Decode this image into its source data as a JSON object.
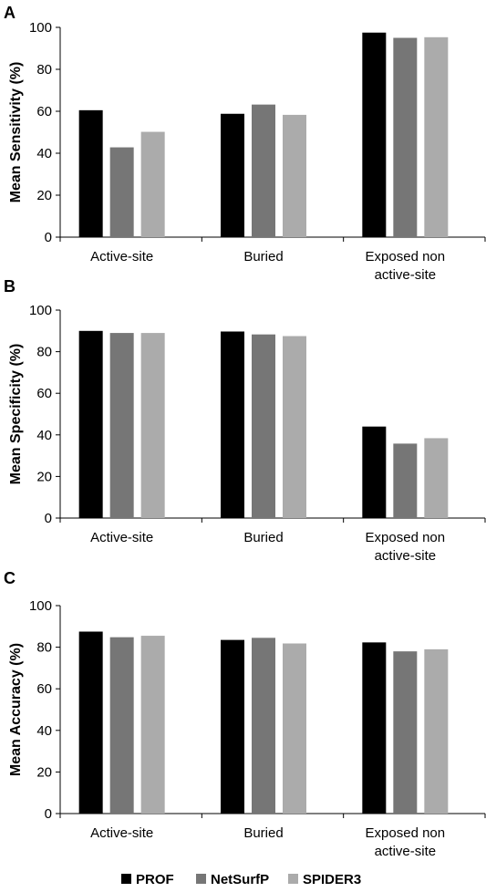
{
  "chart_data": [
    {
      "type": "bar",
      "panel": "A",
      "ylabel": "Mean Sensitivity (%)",
      "categories": [
        [
          "Active-site"
        ],
        [
          "Buried"
        ],
        [
          "Exposed non",
          "active-site"
        ]
      ],
      "ylim": [
        0,
        100
      ],
      "yticks": [
        0,
        20,
        40,
        60,
        80,
        100
      ],
      "series": [
        {
          "name": "PROF",
          "values": [
            60.5,
            58.8,
            97.5
          ]
        },
        {
          "name": "NetSurfP",
          "values": [
            42.8,
            63.2,
            95.0
          ]
        },
        {
          "name": "SPIDER3",
          "values": [
            50.2,
            58.3,
            95.3
          ]
        }
      ]
    },
    {
      "type": "bar",
      "panel": "B",
      "ylabel": "Mean Specificity (%)",
      "categories": [
        [
          "Active-site"
        ],
        [
          "Buried"
        ],
        [
          "Exposed non",
          "active-site"
        ]
      ],
      "ylim": [
        0,
        100
      ],
      "yticks": [
        0,
        20,
        40,
        60,
        80,
        100
      ],
      "series": [
        {
          "name": "PROF",
          "values": [
            90.0,
            89.7,
            44.0
          ]
        },
        {
          "name": "NetSurfP",
          "values": [
            89.0,
            88.3,
            35.8
          ]
        },
        {
          "name": "SPIDER3",
          "values": [
            89.0,
            87.5,
            38.4
          ]
        }
      ]
    },
    {
      "type": "bar",
      "panel": "C",
      "ylabel": "Mean Accuracy (%)",
      "categories": [
        [
          "Active-site"
        ],
        [
          "Buried"
        ],
        [
          "Exposed non",
          "active-site"
        ]
      ],
      "ylim": [
        0,
        100
      ],
      "yticks": [
        0,
        20,
        40,
        60,
        80,
        100
      ],
      "series": [
        {
          "name": "PROF",
          "values": [
            87.5,
            83.5,
            82.3
          ]
        },
        {
          "name": "NetSurfP",
          "values": [
            84.8,
            84.5,
            78.0
          ]
        },
        {
          "name": "SPIDER3",
          "values": [
            85.5,
            81.8,
            79.0
          ]
        }
      ]
    }
  ],
  "legend": {
    "placement": "bottom",
    "items": [
      {
        "label": "PROF",
        "color": "#000000"
      },
      {
        "label": "NetSurfP",
        "color": "#767676"
      },
      {
        "label": "SPIDER3",
        "color": "#ababab"
      }
    ]
  },
  "colors": {
    "PROF": "#000000",
    "NetSurfP": "#767676",
    "SPIDER3": "#ababab"
  }
}
